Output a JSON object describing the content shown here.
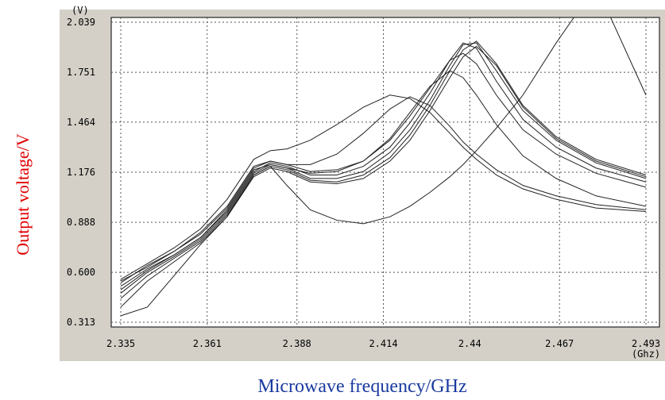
{
  "chart_data": {
    "type": "line",
    "y_unit": "(V)",
    "x_unit": "(Ghz)",
    "ylabel": "Output voltage/V",
    "xlabel": "Microwave frequency/GHz",
    "grid": true,
    "xlim": [
      2.335,
      2.493
    ],
    "ylim": [
      0.313,
      2.039
    ],
    "xticks": [
      2.335,
      2.361,
      2.388,
      2.414,
      2.44,
      2.467,
      2.493
    ],
    "yticks": [
      2.039,
      1.751,
      1.464,
      1.176,
      0.888,
      {
        "value": 0.6,
        "label": "0.600"
      },
      0.313
    ],
    "x": [
      2.335,
      2.343,
      2.351,
      2.359,
      2.367,
      2.375,
      2.38,
      2.385,
      2.392,
      2.4,
      2.408,
      2.416,
      2.422,
      2.428,
      2.434,
      2.438,
      2.442,
      2.448,
      2.456,
      2.466,
      2.478,
      2.493
    ],
    "series": [
      {
        "color": "#222222",
        "values": [
          0.52,
          0.62,
          0.7,
          0.8,
          0.95,
          1.18,
          1.23,
          1.21,
          1.16,
          1.16,
          1.21,
          1.32,
          1.46,
          1.63,
          1.82,
          1.92,
          1.89,
          1.7,
          1.48,
          1.32,
          1.2,
          1.12
        ]
      },
      {
        "color": "#222222",
        "values": [
          0.48,
          0.6,
          0.69,
          0.79,
          0.94,
          1.17,
          1.22,
          1.2,
          1.14,
          1.14,
          1.18,
          1.29,
          1.42,
          1.59,
          1.79,
          1.91,
          1.92,
          1.76,
          1.53,
          1.36,
          1.23,
          1.14
        ]
      },
      {
        "color": "#222222",
        "values": [
          0.45,
          0.58,
          0.68,
          0.78,
          0.93,
          1.16,
          1.21,
          1.19,
          1.13,
          1.12,
          1.16,
          1.26,
          1.39,
          1.56,
          1.76,
          1.88,
          1.93,
          1.8,
          1.56,
          1.38,
          1.25,
          1.16
        ]
      },
      {
        "color": "#222222",
        "values": [
          0.4,
          0.55,
          0.66,
          0.77,
          0.92,
          1.15,
          1.2,
          1.18,
          1.12,
          1.11,
          1.14,
          1.24,
          1.36,
          1.53,
          1.72,
          1.84,
          1.9,
          1.79,
          1.55,
          1.37,
          1.24,
          1.15
        ]
      },
      {
        "color": "#222222",
        "values": [
          0.55,
          0.63,
          0.72,
          0.82,
          0.97,
          1.2,
          1.24,
          1.22,
          1.18,
          1.19,
          1.24,
          1.36,
          1.5,
          1.66,
          1.82,
          1.86,
          1.8,
          1.62,
          1.42,
          1.28,
          1.17,
          1.09
        ]
      },
      {
        "color": "#222222",
        "values": [
          0.5,
          0.61,
          0.7,
          0.8,
          0.96,
          1.19,
          1.22,
          1.2,
          1.17,
          1.18,
          1.24,
          1.37,
          1.52,
          1.67,
          1.76,
          1.72,
          1.62,
          1.45,
          1.27,
          1.14,
          1.04,
          0.98
        ]
      },
      {
        "color": "#222222",
        "values": [
          0.56,
          0.65,
          0.74,
          0.85,
          1.02,
          1.25,
          1.3,
          1.31,
          1.36,
          1.45,
          1.55,
          1.62,
          1.6,
          1.52,
          1.4,
          1.32,
          1.25,
          1.16,
          1.08,
          1.02,
          0.97,
          0.95
        ]
      },
      {
        "color": "#222222",
        "values": [
          0.54,
          0.64,
          0.72,
          0.83,
          0.98,
          1.21,
          1.24,
          1.22,
          1.22,
          1.28,
          1.4,
          1.54,
          1.61,
          1.56,
          1.44,
          1.35,
          1.28,
          1.19,
          1.1,
          1.04,
          0.99,
          0.96
        ]
      },
      {
        "color": "#222222",
        "values": [
          0.35,
          0.4,
          0.58,
          0.76,
          0.92,
          1.16,
          1.21,
          1.1,
          0.96,
          0.9,
          0.88,
          0.92,
          0.98,
          1.06,
          1.15,
          1.22,
          1.3,
          1.43,
          1.62,
          1.92,
          2.25,
          1.62
        ]
      }
    ]
  }
}
